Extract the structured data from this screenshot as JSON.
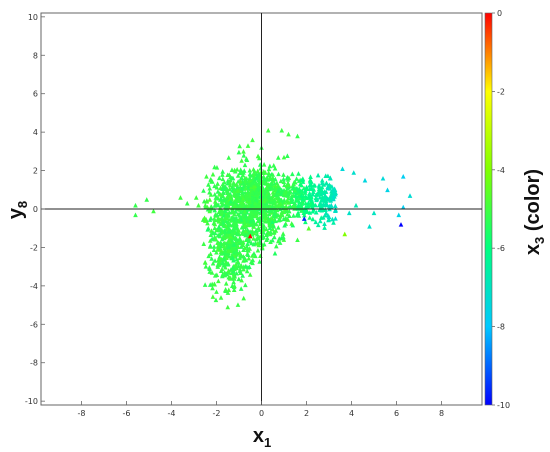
{
  "chart_data": {
    "type": "scatter",
    "marker": "triangle",
    "xlabel_main": "x",
    "xlabel_sub": "1",
    "ylabel_main": "y",
    "ylabel_sub": "8",
    "colorbar_label_main": "x",
    "colorbar_label_sub": "3",
    "colorbar_label_suffix": " (color)",
    "xlim": [
      -9.8,
      9.8
    ],
    "ylim": [
      -10.2,
      10.2
    ],
    "xticks": [
      "-8",
      "-6",
      "-4",
      "-2",
      "0",
      "2",
      "4",
      "6",
      "8"
    ],
    "yticks": [
      "10",
      "8",
      "6",
      "4",
      "2",
      "0",
      "-2",
      "-4",
      "-6",
      "-8",
      "-10"
    ],
    "color_range": [
      -10,
      0
    ],
    "colorbar_ticks": [
      "0",
      "-2",
      "-4",
      "-6",
      "-8",
      "-10"
    ],
    "colormap": [
      "#0000ff",
      "#00c8ff",
      "#00ff80",
      "#80ff00",
      "#ffff00",
      "#ff0000"
    ],
    "grid": false,
    "reference_lines": [
      "x=0",
      "y=0"
    ],
    "points": [
      [
        -5.6,
        0.2,
        -5.2
      ],
      [
        -5.6,
        -0.3,
        -5.2
      ],
      [
        -5.1,
        0.5,
        -5.2
      ],
      [
        -4.8,
        -0.1,
        -5.0
      ],
      [
        -3.6,
        0.6,
        -5.0
      ],
      [
        -3.3,
        0.3,
        -5.2
      ],
      [
        -2.9,
        0.6,
        -5.0
      ],
      [
        -2.4,
        0.1,
        -5.0
      ],
      [
        -2.3,
        -0.1,
        -5.0
      ],
      [
        -2.8,
        0.2,
        -5.0
      ],
      [
        -2.2,
        -3.3,
        -5.1
      ],
      [
        -2.1,
        -3.9,
        -5.0
      ],
      [
        -2.0,
        -4.3,
        -5.1
      ],
      [
        -1.8,
        -4.6,
        -5.0
      ],
      [
        -1.6,
        -4.2,
        -5.1
      ],
      [
        -1.5,
        -5.1,
        -5.0
      ],
      [
        -1.4,
        -3.6,
        -5.0
      ],
      [
        -1.2,
        -4.0,
        -5.1
      ],
      [
        -2.5,
        -0.6,
        -4.8
      ],
      [
        -2.3,
        0.5,
        -4.8
      ],
      [
        -0.5,
        -1.4,
        0.0
      ],
      [
        -0.6,
        3.3,
        -5.0
      ],
      [
        -0.4,
        3.6,
        -5.0
      ],
      [
        0.3,
        4.1,
        -5.0
      ],
      [
        0.9,
        4.1,
        -5.1
      ],
      [
        1.2,
        3.9,
        -5.0
      ],
      [
        1.6,
        3.8,
        -5.2
      ],
      [
        0.0,
        3.2,
        -5.2
      ],
      [
        1.0,
        2.7,
        -5.0
      ],
      [
        -0.8,
        3.0,
        -5.0
      ],
      [
        3.6,
        2.1,
        -7.4
      ],
      [
        4.1,
        1.9,
        -7.2
      ],
      [
        4.6,
        1.5,
        -7.5
      ],
      [
        5.4,
        1.6,
        -7.4
      ],
      [
        5.6,
        1.0,
        -7.6
      ],
      [
        6.3,
        1.7,
        -7.8
      ],
      [
        6.6,
        0.7,
        -7.3
      ],
      [
        6.1,
        -0.3,
        -7.6
      ],
      [
        6.3,
        0.1,
        -7.8
      ],
      [
        6.2,
        -0.8,
        -10.0
      ],
      [
        4.8,
        -0.9,
        -7.2
      ],
      [
        5.0,
        -0.2,
        -7.0
      ],
      [
        4.2,
        0.2,
        -6.8
      ],
      [
        3.0,
        -0.4,
        -7.0
      ],
      [
        2.7,
        1.5,
        -6.6
      ],
      [
        1.9,
        -0.5,
        -9.6
      ],
      [
        3.7,
        -1.3,
        -4.0
      ],
      [
        3.2,
        -0.7,
        -6.6
      ],
      [
        2.1,
        -1.0,
        -4.6
      ],
      [
        3.9,
        -0.2,
        -7.1
      ],
      [
        0.6,
        -2.3,
        -5.5
      ],
      [
        -0.4,
        -2.8,
        -5.3
      ],
      [
        -1.1,
        -2.6,
        -5.4
      ],
      [
        0.4,
        -1.7,
        -5.2
      ],
      [
        1.6,
        -1.6,
        -5.1
      ],
      [
        -0.8,
        1.9,
        -5.3
      ],
      [
        0.5,
        1.8,
        -5.2
      ],
      [
        1.4,
        1.1,
        -5.6
      ],
      [
        2.3,
        0.9,
        -6.3
      ],
      [
        -1.5,
        0.9,
        -5.2
      ]
    ],
    "cloud_seed": 7
  }
}
